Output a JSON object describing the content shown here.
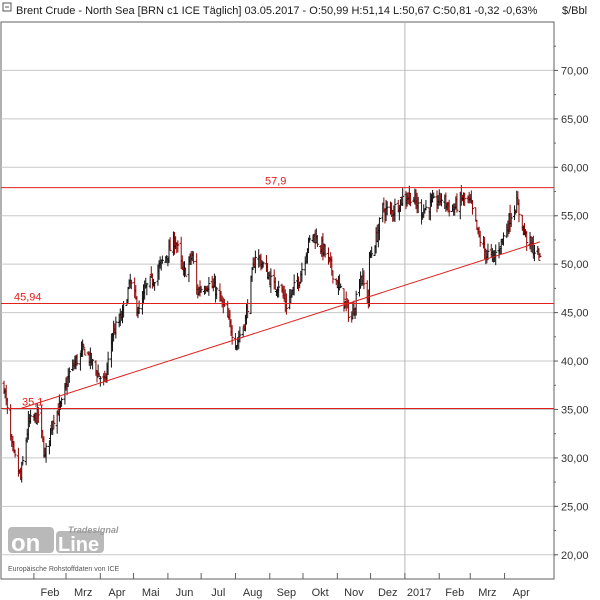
{
  "header": {
    "title": "Brent Crude - North Sea [BRN c1 ICE  Täglich] 03.05.2017 - O:50,99 H:51,14 L:50,67 C:50,81 -0,32 -0,63%",
    "unit": "$/Bbl"
  },
  "colors": {
    "level_line": "#e0201d",
    "trend_line": "#e0201d",
    "bar_up": "#111111",
    "bar_down": "#8b0000",
    "grid": "#c8c8c8",
    "axis": "#606060"
  },
  "watermark": {
    "brand_top": "Tradesignal",
    "brand_left": "on",
    "brand_right": "Line",
    "source": "Europäische Rohstoffdaten von ICE"
  },
  "chart_data": {
    "type": "ohlc",
    "title": "Brent Crude - North Sea [BRN c1 ICE  Täglich]",
    "ylabel": "$/Bbl",
    "ylim": [
      17.5,
      75
    ],
    "y_ticks": [
      "20,00",
      "25,00",
      "30,00",
      "35,00",
      "40,00",
      "45,00",
      "50,00",
      "55,00",
      "60,00",
      "65,00",
      "70,00"
    ],
    "y_tick_values": [
      20,
      25,
      30,
      35,
      40,
      45,
      50,
      55,
      60,
      65,
      70
    ],
    "x_months": [
      "Feb",
      "Mrz",
      "Apr",
      "Mai",
      "Jun",
      "Jul",
      "Aug",
      "Sep",
      "Okt",
      "Nov",
      "Dez",
      "2017",
      "Feb",
      "Mrz",
      "Apr"
    ],
    "x_range": [
      "2016-01-05",
      "2017-05-03"
    ],
    "last_bar": {
      "date": "03.05.2017",
      "open": 50.99,
      "high": 51.14,
      "low": 50.67,
      "close": 50.81,
      "change": -0.32,
      "change_pct": -0.63
    },
    "price_path": [
      [
        "2016-01-05",
        37.5
      ],
      [
        "2016-01-12",
        31.0
      ],
      [
        "2016-01-20",
        27.9
      ],
      [
        "2016-01-27",
        33.5
      ],
      [
        "2016-02-05",
        34.5
      ],
      [
        "2016-02-11",
        30.1
      ],
      [
        "2016-02-18",
        34.0
      ],
      [
        "2016-02-26",
        35.5
      ],
      [
        "2016-03-04",
        38.7
      ],
      [
        "2016-03-10",
        40.0
      ],
      [
        "2016-03-18",
        41.2
      ],
      [
        "2016-03-28",
        39.0
      ],
      [
        "2016-04-05",
        37.7
      ],
      [
        "2016-04-12",
        42.8
      ],
      [
        "2016-04-20",
        44.5
      ],
      [
        "2016-04-28",
        48.1
      ],
      [
        "2016-05-06",
        45.0
      ],
      [
        "2016-05-12",
        47.5
      ],
      [
        "2016-05-20",
        48.7
      ],
      [
        "2016-05-26",
        50.0
      ],
      [
        "2016-06-08",
        52.5
      ],
      [
        "2016-06-15",
        48.9
      ],
      [
        "2016-06-23",
        50.9
      ],
      [
        "2016-06-27",
        47.2
      ],
      [
        "2016-07-06",
        48.0
      ],
      [
        "2016-07-14",
        47.4
      ],
      [
        "2016-07-22",
        45.3
      ],
      [
        "2016-08-02",
        41.8
      ],
      [
        "2016-08-10",
        44.3
      ],
      [
        "2016-08-19",
        51.0
      ],
      [
        "2016-08-26",
        49.9
      ],
      [
        "2016-09-05",
        47.6
      ],
      [
        "2016-09-09",
        48.0
      ],
      [
        "2016-09-16",
        45.8
      ],
      [
        "2016-09-28",
        48.7
      ],
      [
        "2016-10-05",
        51.8
      ],
      [
        "2016-10-10",
        53.1
      ],
      [
        "2016-10-20",
        51.4
      ],
      [
        "2016-10-31",
        48.3
      ],
      [
        "2016-11-09",
        45.6
      ],
      [
        "2016-11-14",
        44.4
      ],
      [
        "2016-11-22",
        48.9
      ],
      [
        "2016-11-29",
        46.4
      ],
      [
        "2016-11-30",
        50.5
      ],
      [
        "2016-12-07",
        53.0
      ],
      [
        "2016-12-12",
        55.7
      ],
      [
        "2016-12-20",
        55.4
      ],
      [
        "2016-12-30",
        56.8
      ],
      [
        "2017-01-06",
        57.1
      ],
      [
        "2017-01-16",
        55.5
      ],
      [
        "2017-01-26",
        56.2
      ],
      [
        "2017-02-03",
        56.8
      ],
      [
        "2017-02-13",
        55.6
      ],
      [
        "2017-02-22",
        56.8
      ],
      [
        "2017-03-01",
        56.3
      ],
      [
        "2017-03-08",
        53.1
      ],
      [
        "2017-03-14",
        51.3
      ],
      [
        "2017-03-22",
        50.6
      ],
      [
        "2017-03-31",
        52.8
      ],
      [
        "2017-04-07",
        55.2
      ],
      [
        "2017-04-12",
        56.2
      ],
      [
        "2017-04-20",
        52.9
      ],
      [
        "2017-04-27",
        51.5
      ],
      [
        "2017-05-03",
        50.81
      ]
    ],
    "horizontal_levels": [
      {
        "value": 57.9,
        "label": "57,9"
      },
      {
        "value": 45.94,
        "label": "45,94"
      },
      {
        "value": 35.1,
        "label": "35,1"
      }
    ],
    "trend_line": {
      "from": [
        "2016-01-20",
        35.1
      ],
      "to": [
        "2017-05-03",
        52.3
      ]
    }
  }
}
